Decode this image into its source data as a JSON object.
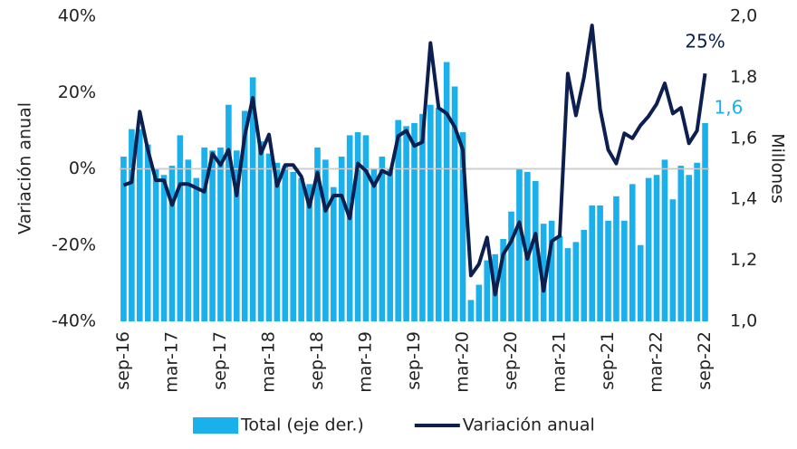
{
  "chart_data": {
    "type": "bar-line",
    "y_label": "Variación anual",
    "y2_label": "Millones",
    "categories": [
      "sep-16",
      null,
      null,
      null,
      null,
      null,
      "mar-17",
      null,
      null,
      null,
      null,
      null,
      "sep-17",
      null,
      null,
      null,
      null,
      null,
      "mar-18",
      null,
      null,
      null,
      null,
      null,
      "sep-18",
      null,
      null,
      null,
      null,
      null,
      "mar-19",
      null,
      null,
      null,
      null,
      null,
      "sep-19",
      null,
      null,
      null,
      null,
      null,
      "mar-20",
      null,
      null,
      null,
      null,
      null,
      "sep-20",
      null,
      null,
      null,
      null,
      null,
      "mar-21",
      null,
      null,
      null,
      null,
      null,
      "sep-21",
      null,
      null,
      null,
      null,
      null,
      "mar-22",
      null,
      null,
      null,
      null,
      null,
      "sep-22"
    ],
    "series": [
      {
        "name": "Total (eje der.)",
        "type": "bar",
        "axis": "y2",
        "color": "#19b0ec",
        "values": [
          1.54,
          1.63,
          1.63,
          1.58,
          1.5,
          1.48,
          1.51,
          1.61,
          1.53,
          1.47,
          1.57,
          1.56,
          1.57,
          1.71,
          1.56,
          1.69,
          1.8,
          1.59,
          1.55,
          1.52,
          1.51,
          1.49,
          1.47,
          1.45,
          1.57,
          1.53,
          1.44,
          1.54,
          1.61,
          1.62,
          1.61,
          1.5,
          1.54,
          1.5,
          1.66,
          1.64,
          1.65,
          1.68,
          1.71,
          1.7,
          1.85,
          1.77,
          1.62,
          1.07,
          1.12,
          1.2,
          1.22,
          1.27,
          1.36,
          1.5,
          1.49,
          1.46,
          1.32,
          1.33,
          1.28,
          1.24,
          1.26,
          1.3,
          1.38,
          1.38,
          1.33,
          1.41,
          1.33,
          1.45,
          1.25,
          1.47,
          1.48,
          1.53,
          1.4,
          1.51,
          1.48,
          1.52,
          1.65
        ],
        "value_labels": [
          null,
          null,
          null,
          null,
          null,
          null,
          null,
          null,
          null,
          null,
          null,
          null,
          null,
          null,
          null,
          null,
          null,
          null,
          null,
          null,
          null,
          null,
          null,
          null,
          null,
          null,
          null,
          null,
          null,
          null,
          null,
          null,
          null,
          null,
          null,
          null,
          null,
          null,
          null,
          null,
          null,
          null,
          null,
          null,
          null,
          null,
          null,
          null,
          null,
          null,
          null,
          null,
          null,
          null,
          null,
          null,
          null,
          null,
          null,
          null,
          null,
          null,
          null,
          null,
          null,
          null,
          null,
          null,
          null,
          null,
          null,
          null,
          "1,6"
        ]
      },
      {
        "name": "Variación anual",
        "type": "line",
        "axis": "y",
        "color": "#0c1f4e",
        "values": [
          -4.3,
          -3.5,
          15,
          5,
          -3,
          -3,
          -9.5,
          -4,
          -4,
          -5,
          -6,
          4,
          1,
          5,
          -7,
          8.6,
          18.6,
          4,
          9,
          -4.5,
          1,
          1,
          -2,
          -10,
          -1,
          -11,
          -7,
          -7,
          -13,
          1.4,
          -0.5,
          -4.5,
          -0.5,
          -1.5,
          8.6,
          10,
          6,
          7,
          33,
          16,
          14.5,
          11,
          5,
          -28,
          -25,
          -18,
          -33,
          -22.4,
          -19,
          -14,
          -23.6,
          -17,
          -32,
          -19,
          -17.6,
          25,
          14,
          24,
          37.6,
          15.7,
          5,
          1.4,
          9.3,
          8,
          11.4,
          13.8,
          17,
          22.4,
          14.5,
          16,
          6.7,
          10,
          25
        ],
        "value_labels": [
          null,
          null,
          null,
          null,
          null,
          null,
          null,
          null,
          null,
          null,
          null,
          null,
          null,
          null,
          null,
          null,
          null,
          null,
          null,
          null,
          null,
          null,
          null,
          null,
          null,
          null,
          null,
          null,
          null,
          null,
          null,
          null,
          null,
          null,
          null,
          null,
          null,
          null,
          null,
          null,
          null,
          null,
          null,
          null,
          null,
          null,
          null,
          null,
          null,
          null,
          null,
          null,
          null,
          null,
          null,
          null,
          null,
          null,
          null,
          null,
          null,
          null,
          null,
          null,
          null,
          null,
          null,
          null,
          null,
          null,
          null,
          null,
          "25%"
        ]
      }
    ],
    "ylim": [
      -40,
      40
    ],
    "yticks": [
      {
        "value": 40,
        "label": "40%"
      },
      {
        "value": 20,
        "label": "20%"
      },
      {
        "value": 0,
        "label": "0%"
      },
      {
        "value": -20,
        "label": "-20%"
      },
      {
        "value": -40,
        "label": "-40%"
      }
    ],
    "y2lim": [
      1.0,
      2.0
    ],
    "y2ticks": [
      {
        "value": 2.0,
        "label": "2,0"
      },
      {
        "value": 1.8,
        "label": "1,8"
      },
      {
        "value": 1.6,
        "label": "1,6"
      },
      {
        "value": 1.4,
        "label": "1,4"
      },
      {
        "value": 1.2,
        "label": "1,2"
      },
      {
        "value": 1.0,
        "label": "1,0"
      }
    ],
    "legend": "bottom"
  }
}
